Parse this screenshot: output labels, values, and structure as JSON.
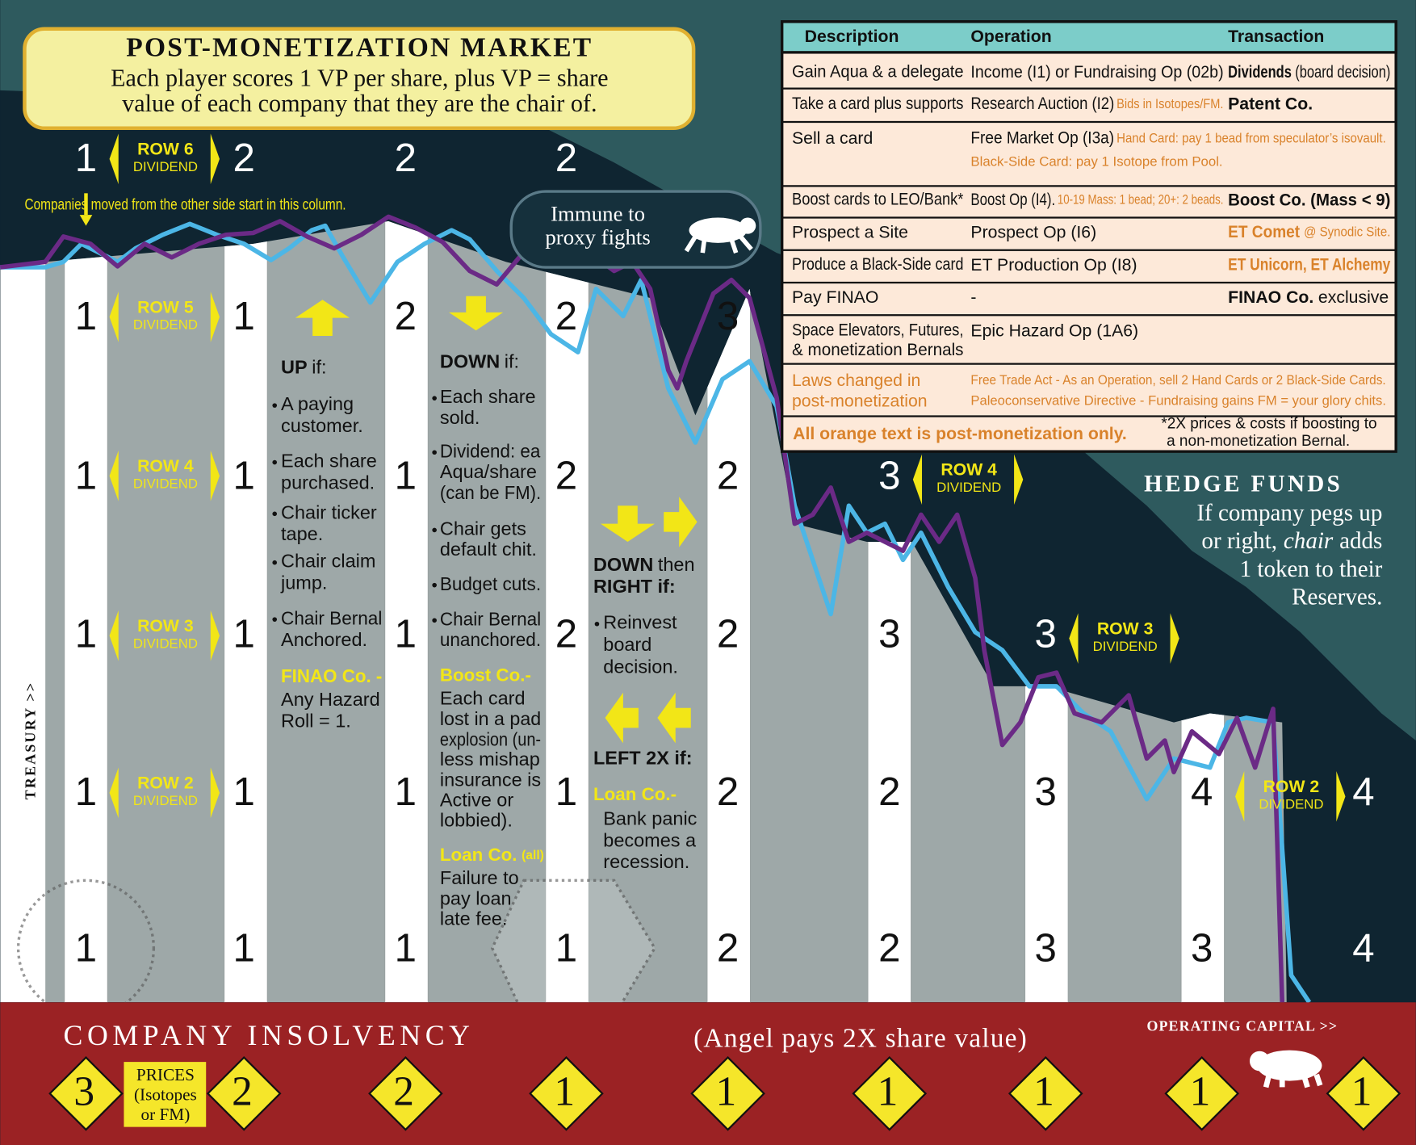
{
  "header": {
    "title": "POST-MONETIZATION MARKET",
    "subtitle": [
      "Each player scores 1 VP per share, plus VP = share",
      "value of each company that they are the chair of."
    ]
  },
  "share_values": {
    "rows": [
      [
        1,
        2,
        2,
        2,
        null,
        null,
        null,
        null,
        null
      ],
      [
        1,
        1,
        2,
        2,
        3,
        null,
        null,
        null,
        null
      ],
      [
        1,
        1,
        1,
        2,
        2,
        3,
        null,
        null,
        null
      ],
      [
        1,
        1,
        1,
        2,
        2,
        3,
        3,
        null,
        null
      ],
      [
        1,
        1,
        1,
        1,
        2,
        2,
        3,
        4,
        4
      ],
      [
        1,
        1,
        1,
        1,
        2,
        2,
        3,
        3,
        4
      ]
    ]
  },
  "row_markers": [
    {
      "label": "ROW 6",
      "sub": "DIVIDEND"
    },
    {
      "label": "ROW 5",
      "sub": "DIVIDEND"
    },
    {
      "label": "ROW 4",
      "sub": "DIVIDEND"
    },
    {
      "label": "ROW 3",
      "sub": "DIVIDEND"
    },
    {
      "label": "ROW 2",
      "sub": "DIVIDEND"
    },
    {
      "label": "ROW 4",
      "sub": "DIVIDEND"
    },
    {
      "label": "ROW 3",
      "sub": "DIVIDEND"
    },
    {
      "label": "ROW 2",
      "sub": "DIVIDEND"
    }
  ],
  "column_note": "Companies moved from the other side start in this column.",
  "immune_badge": [
    "Immune to",
    "proxy fights"
  ],
  "up_rules": {
    "title": [
      "UP",
      "if:"
    ],
    "items": [
      [
        "A paying",
        "customer."
      ],
      [
        "Each share",
        "purchased."
      ],
      [
        "Chair ticker",
        "tape."
      ],
      [
        "Chair claim",
        "jump."
      ],
      [
        "Chair Bernal",
        "Anchored."
      ]
    ],
    "special": {
      "title": "FINAO Co. -",
      "lines": [
        "Any Hazard",
        "Roll = 1."
      ]
    }
  },
  "down_rules": {
    "title": [
      "DOWN",
      "if:"
    ],
    "items": [
      [
        "Each share",
        "sold."
      ],
      [
        "Dividend: ea",
        "Aqua/share",
        "(can be FM)."
      ],
      [
        "Chair gets",
        "default chit."
      ],
      [
        "Budget cuts."
      ],
      [
        "Chair Bernal",
        "unanchored."
      ]
    ],
    "specials": [
      {
        "title": [
          "Boost Co.-"
        ],
        "lines": [
          "Each card",
          "lost in a pad",
          "explosion (un-",
          "less mishap",
          "insurance is",
          "Active or",
          "lobbied)."
        ]
      },
      {
        "title": [
          "Loan Co.",
          "(all)"
        ],
        "lines": [
          "Failure to",
          "pay loan",
          "late fee."
        ]
      }
    ]
  },
  "down_right_rules": {
    "title": [
      [
        "DOWN",
        "then"
      ],
      [
        "RIGHT if:"
      ]
    ],
    "items": [
      [
        "Reinvest",
        "board",
        "decision."
      ]
    ],
    "left_title": "LEFT 2X if:",
    "special": {
      "title": "Loan Co.-",
      "lines": [
        "Bank panic",
        "becomes a",
        "recession."
      ]
    }
  },
  "hedge_funds": {
    "title": "HEDGE FUNDS",
    "lines": [
      [
        "If company pegs up"
      ],
      [
        "or right,",
        "chair",
        "adds"
      ],
      [
        "1 token to their"
      ],
      [
        "Reserves."
      ]
    ]
  },
  "table": {
    "headers": [
      "Description",
      "Operation",
      "Transaction"
    ],
    "rows": [
      {
        "description": [
          "Gain Aqua & a delegate"
        ],
        "operation": [
          [
            "Income (I1) or Fundraising Op (02b)"
          ]
        ],
        "transaction": [
          "Dividends",
          "(board decision)"
        ]
      },
      {
        "description": [
          "Take a card plus supports"
        ],
        "operation": [
          [
            "Research Auction (I2)",
            "Bids in Isotopes/FM."
          ]
        ],
        "transaction": [
          "Patent Co."
        ]
      },
      {
        "description": [
          "Sell a card"
        ],
        "operation": [
          [
            "Free Market Op (I3a)",
            "Hand Card: pay 1 bead from speculator’s isovault."
          ],
          [
            "Black-Side Card: pay 1 Isotope from Pool."
          ]
        ],
        "transaction": []
      },
      {
        "description": [
          "Boost cards to LEO/Bank*"
        ],
        "operation": [
          [
            "Boost Op (I4).",
            "10-19 Mass: 1 bead; 20+: 2 beads."
          ]
        ],
        "transaction": [
          "Boost Co. (Mass < 9)"
        ]
      },
      {
        "description": [
          "Prospect a Site"
        ],
        "operation": [
          [
            "Prospect Op (I6)"
          ]
        ],
        "transaction": [
          "ET Comet",
          "@ Synodic Site."
        ]
      },
      {
        "description": [
          "Produce a Black-Side card"
        ],
        "operation": [
          [
            "ET Production Op (I8)"
          ]
        ],
        "transaction": [
          "ET Unicorn, ET Alchemy"
        ]
      },
      {
        "description": [
          "Pay FINAO"
        ],
        "operation": [
          [
            "-"
          ]
        ],
        "transaction": [
          "FINAO Co.",
          "exclusive"
        ]
      },
      {
        "description": [
          "Space Elevators, Futures,",
          "& monetization Bernals"
        ],
        "operation": [
          [
            "Epic Hazard Op (1A6)"
          ]
        ],
        "transaction": []
      },
      {
        "description": [
          "Laws changed in",
          "post-monetization"
        ],
        "operation": [
          [
            "Free Trade Act - As an Operation, sell 2 Hand Cards or 2 Black-Side Cards."
          ],
          [
            "Paleoconservative Directive - Fundraising gains FM = your glory chits."
          ]
        ],
        "transaction": []
      }
    ],
    "footer": {
      "text": "All orange text is post-monetization only.",
      "note": [
        "*2X prices & costs if boosting to",
        "a non-monetization Bernal."
      ]
    }
  },
  "treasury_label": "TREASURY >>",
  "operating_capital_label": "OPERATING CAPITAL >>",
  "insolvency": {
    "title": "COMPANY INSOLVENCY",
    "note": "(Angel pays 2X share value)"
  },
  "prices": {
    "label": [
      "PRICES",
      "(Isotopes",
      "or FM)"
    ],
    "values": [
      3,
      2,
      2,
      1,
      1,
      1,
      1,
      1,
      1
    ]
  }
}
